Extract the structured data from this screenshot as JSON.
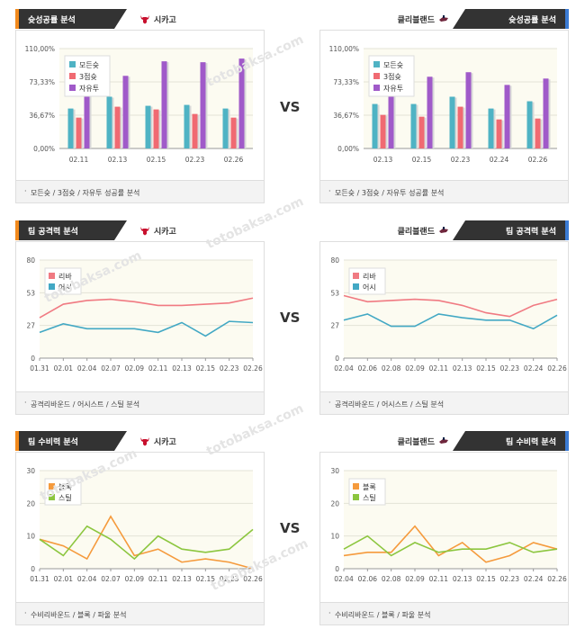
{
  "vs_label": "VS",
  "watermark": "totobaksa.com",
  "colors": {
    "bar1": "#4fb3c4",
    "bar2": "#f06a72",
    "bar3": "#a05ac9",
    "line_red": "#f07a82",
    "line_blue": "#42a8c4",
    "line_orange": "#f59a3c",
    "line_green": "#8cc63f"
  },
  "panels": [
    {
      "title": "슛성공률 분석",
      "team": "시카고",
      "team_icon": "bull-logo-icon",
      "footer": "모든슛 / 3점슛 / 자유투 성공률 분석",
      "chart_data": {
        "type": "bar",
        "categories": [
          "02.11",
          "02.13",
          "02.15",
          "02.23",
          "02.26"
        ],
        "y_ticks": [
          "0,00%",
          "36,67%",
          "73,33%",
          "110,00%"
        ],
        "ylim": [
          0,
          110
        ],
        "legend": "top-left",
        "series": [
          {
            "name": "모든슛",
            "values": [
              44,
              57,
              47,
              48,
              44
            ]
          },
          {
            "name": "3점슛",
            "values": [
              34,
              46,
              43,
              38,
              34
            ]
          },
          {
            "name": "자유투",
            "values": [
              87,
              80,
              96,
              95,
              99
            ]
          }
        ]
      }
    },
    {
      "title": "슛성공률 분석",
      "team": "클리블랜드",
      "team_icon": "cavs-logo-icon",
      "footer": "모든슛 / 3점슛 / 자유투 성공률 분석",
      "chart_data": {
        "type": "bar",
        "categories": [
          "02.13",
          "02.15",
          "02.23",
          "02.24",
          "02.26"
        ],
        "y_ticks": [
          "0,00%",
          "36,67%",
          "73,33%",
          "110,00%"
        ],
        "ylim": [
          0,
          110
        ],
        "legend": "top-left",
        "series": [
          {
            "name": "모든슛",
            "values": [
              49,
              49,
              57,
              44,
              52
            ]
          },
          {
            "name": "3점슛",
            "values": [
              37,
              35,
              46,
              32,
              33
            ]
          },
          {
            "name": "자유투",
            "values": [
              74,
              79,
              84,
              70,
              77
            ]
          }
        ]
      }
    },
    {
      "title": "팀 공격력 분석",
      "team": "시카고",
      "team_icon": "bull-logo-icon",
      "footer": "공격리바운드 / 어시스트 / 스틸 분석",
      "chart_data": {
        "type": "line",
        "categories": [
          "01.31",
          "02.01",
          "02.04",
          "02.07",
          "02.09",
          "02.11",
          "02.13",
          "02.15",
          "02.23",
          "02.26"
        ],
        "y_ticks": [
          "0",
          "27",
          "53",
          "80"
        ],
        "ylim": [
          0,
          80
        ],
        "legend": "top-left",
        "series": [
          {
            "name": "리바",
            "color_key": "line_red",
            "values": [
              33,
              44,
              47,
              48,
              46,
              43,
              43,
              44,
              45,
              49
            ]
          },
          {
            "name": "어시",
            "color_key": "line_blue",
            "values": [
              21,
              28,
              24,
              24,
              24,
              21,
              29,
              18,
              30,
              29
            ]
          }
        ]
      }
    },
    {
      "title": "팀 공격력 분석",
      "team": "클리블랜드",
      "team_icon": "cavs-logo-icon",
      "footer": "공격리바운드 / 어시스트 / 스틸 분석",
      "chart_data": {
        "type": "line",
        "categories": [
          "02.04",
          "02.06",
          "02.08",
          "02.09",
          "02.11",
          "02.13",
          "02.15",
          "02.23",
          "02.24",
          "02.26"
        ],
        "y_ticks": [
          "0",
          "27",
          "53",
          "80"
        ],
        "ylim": [
          0,
          80
        ],
        "legend": "top-left",
        "series": [
          {
            "name": "리바",
            "color_key": "line_red",
            "values": [
              51,
              46,
              47,
              48,
              47,
              43,
              37,
              34,
              43,
              48
            ]
          },
          {
            "name": "어시",
            "color_key": "line_blue",
            "values": [
              31,
              36,
              26,
              26,
              36,
              33,
              31,
              31,
              24,
              35
            ]
          }
        ]
      }
    },
    {
      "title": "팀 수비력 분석",
      "team": "시카고",
      "team_icon": "bull-logo-icon",
      "footer": "수비리바운드 / 블록 / 파울 분석",
      "chart_data": {
        "type": "line",
        "categories": [
          "01.31",
          "02.01",
          "02.04",
          "02.07",
          "02.09",
          "02.11",
          "02.13",
          "02.15",
          "02.23",
          "02.26"
        ],
        "y_ticks": [
          "0",
          "10",
          "20",
          "30"
        ],
        "ylim": [
          0,
          30
        ],
        "legend": "top-left",
        "series": [
          {
            "name": "블록",
            "color_key": "line_orange",
            "values": [
              9,
              7,
              3,
              16,
              4,
              6,
              2,
              3,
              2,
              0
            ]
          },
          {
            "name": "스틸",
            "color_key": "line_green",
            "values": [
              9,
              4,
              13,
              9,
              3,
              10,
              6,
              5,
              6,
              12
            ]
          }
        ]
      }
    },
    {
      "title": "팀 수비력 분석",
      "team": "클리블랜드",
      "team_icon": "cavs-logo-icon",
      "footer": "수비리바운드 / 블록 / 파울 분석",
      "chart_data": {
        "type": "line",
        "categories": [
          "02.04",
          "02.06",
          "02.08",
          "02.09",
          "02.11",
          "02.13",
          "02.15",
          "02.23",
          "02.24",
          "02.26"
        ],
        "y_ticks": [
          "0",
          "10",
          "20",
          "30"
        ],
        "ylim": [
          0,
          30
        ],
        "legend": "top-left",
        "series": [
          {
            "name": "블록",
            "color_key": "line_orange",
            "values": [
              4,
              5,
              5,
              13,
              4,
              8,
              2,
              4,
              8,
              6
            ]
          },
          {
            "name": "스틸",
            "color_key": "line_green",
            "values": [
              6,
              10,
              4,
              8,
              5,
              6,
              6,
              8,
              5,
              6
            ]
          }
        ]
      }
    }
  ]
}
